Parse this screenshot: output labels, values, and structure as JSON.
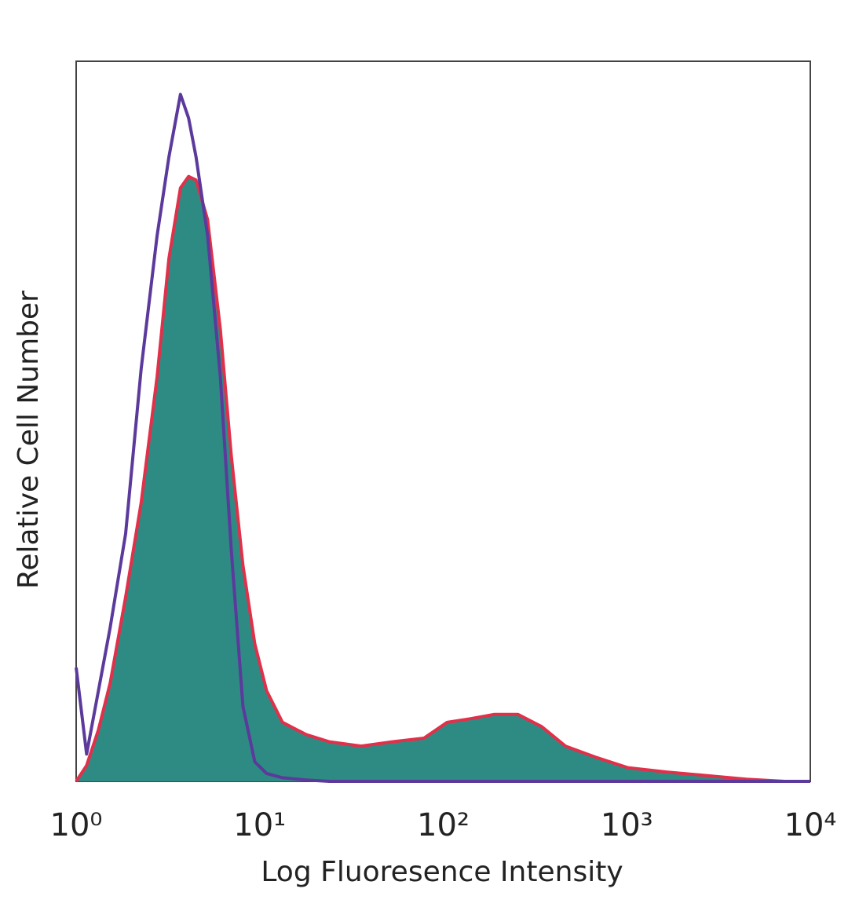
{
  "chart_data": {
    "type": "histogram-overlay",
    "x_label": "Log Fluoresence Intensity",
    "y_label": "Relative Cell Number",
    "xscale": "log",
    "xlim": [
      1,
      10000
    ],
    "xticks": [
      {
        "value": 1,
        "label": "10⁰"
      },
      {
        "value": 10,
        "label": "10¹"
      },
      {
        "value": 100,
        "label": "10²"
      },
      {
        "value": 1000,
        "label": "10³"
      },
      {
        "value": 10000,
        "label": "10⁴"
      }
    ],
    "ylim": [
      0,
      100
    ],
    "x": [
      1,
      1.14,
      1.32,
      1.53,
      1.86,
      2.26,
      2.76,
      3.2,
      3.7,
      4.1,
      4.5,
      5.2,
      6.1,
      7.0,
      8.1,
      9.4,
      10.9,
      13.3,
      17.9,
      24.0,
      35.7,
      52.8,
      78.5,
      105,
      141,
      190,
      255,
      344,
      463,
      686,
      1015,
      1650,
      2750,
      4470,
      7250,
      10000
    ],
    "series": [
      {
        "color": "#2e8b84",
        "edge_color": "#e0304a",
        "fill": true,
        "values": [
          0,
          2.2,
          7.1,
          13.6,
          25.6,
          38.7,
          56.2,
          72.6,
          82.4,
          84.0,
          83.5,
          78.0,
          62.8,
          45.3,
          30.0,
          19.1,
          12.6,
          8.2,
          6.5,
          5.5,
          4.9,
          5.5,
          6.0,
          8.2,
          8.7,
          9.3,
          9.3,
          7.6,
          4.9,
          3.3,
          1.9,
          1.3,
          0.8,
          0.3,
          0,
          0
        ]
      },
      {
        "color": "#5b3a9c",
        "fill": false,
        "values": [
          15.8,
          3.8,
          12.5,
          21.3,
          34.4,
          57.3,
          75.8,
          86.7,
          95.4,
          92.1,
          86.7,
          75.8,
          56.2,
          32.2,
          10.4,
          2.7,
          1.1,
          0.5,
          0.2,
          0,
          0,
          0,
          0,
          0,
          0,
          0,
          0,
          0,
          0,
          0,
          0,
          0,
          0,
          0,
          0,
          0
        ]
      }
    ]
  }
}
